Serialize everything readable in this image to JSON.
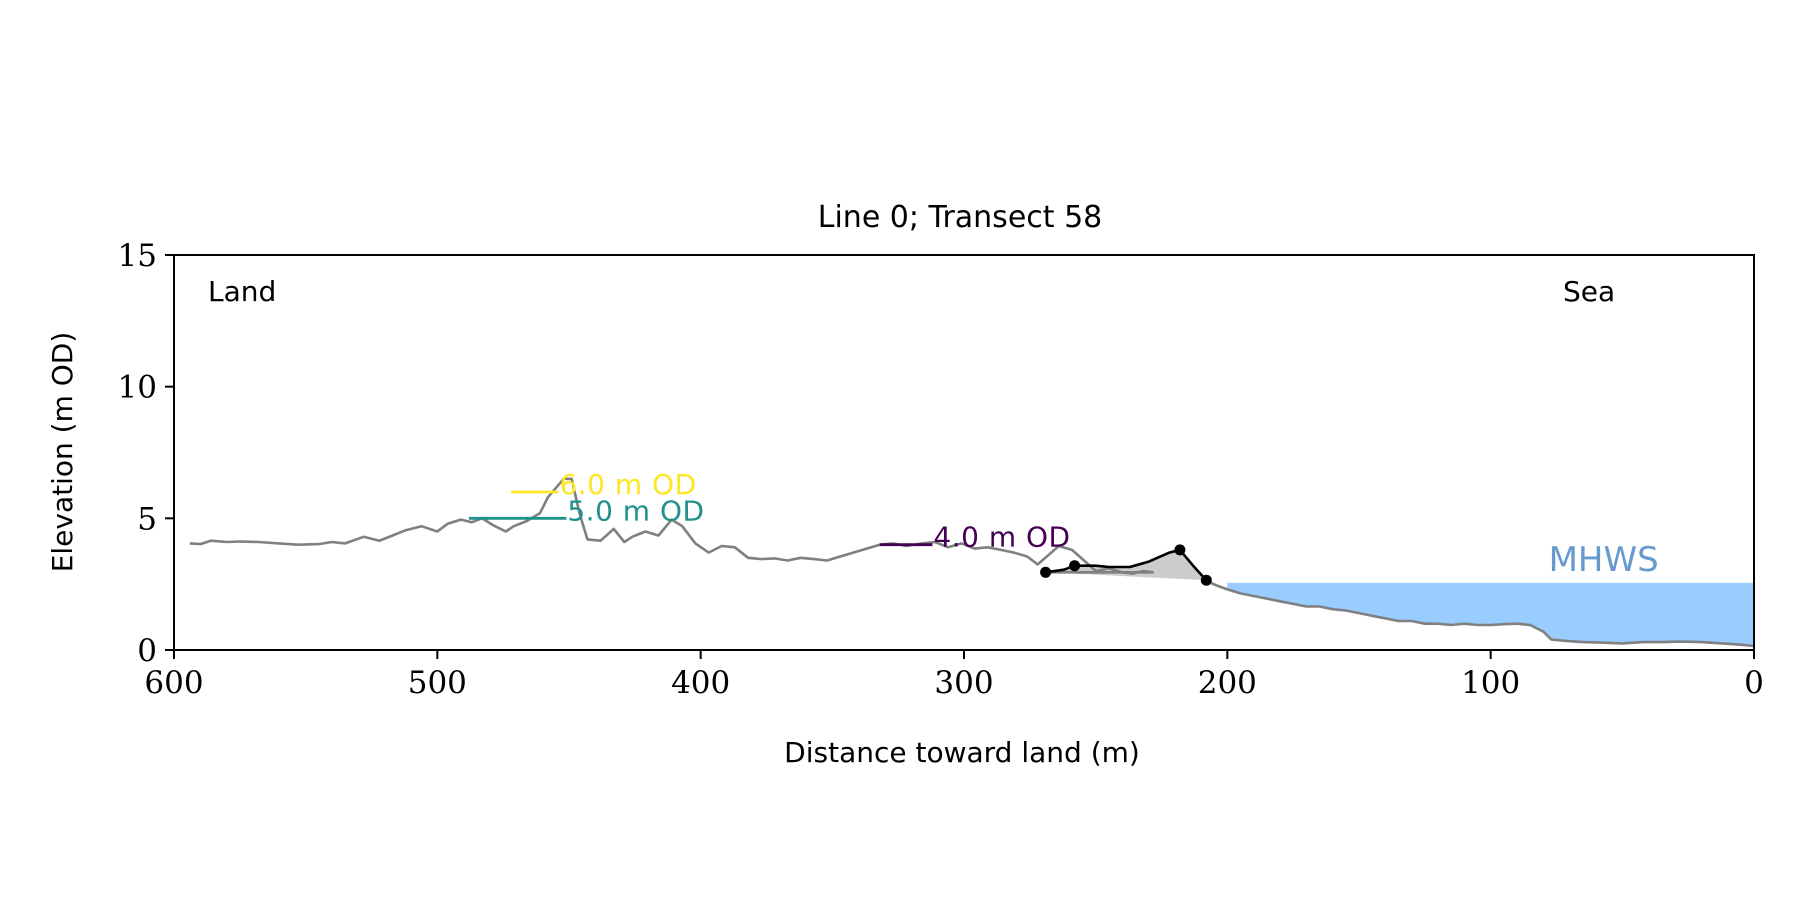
{
  "chart_data": {
    "type": "line",
    "title": "Line 0; Transect 58",
    "xlabel": "Distance toward land (m)",
    "ylabel": "Elevation (m OD)",
    "xlim": [
      600,
      0
    ],
    "ylim": [
      0,
      15
    ],
    "x_ticks": [
      600,
      500,
      400,
      300,
      200,
      100,
      0
    ],
    "y_ticks": [
      0,
      5,
      10,
      15
    ],
    "x_reversed": true,
    "grid": false,
    "annotations": {
      "land": "Land",
      "sea": "Sea",
      "mhws": "MHWS"
    },
    "mhws": {
      "elevation": 2.55,
      "from_x": 200,
      "to_x": 0,
      "color": "#99ccff",
      "label_color": "#6699cc"
    },
    "profile": {
      "color": "#808080",
      "points": [
        [
          594,
          4.05
        ],
        [
          590,
          4.02
        ],
        [
          586,
          4.15
        ],
        [
          580,
          4.1
        ],
        [
          575,
          4.12
        ],
        [
          568,
          4.1
        ],
        [
          560,
          4.05
        ],
        [
          553,
          4.0
        ],
        [
          545,
          4.02
        ],
        [
          540,
          4.1
        ],
        [
          535,
          4.05
        ],
        [
          528,
          4.3
        ],
        [
          522,
          4.15
        ],
        [
          517,
          4.35
        ],
        [
          512,
          4.55
        ],
        [
          506,
          4.7
        ],
        [
          500,
          4.5
        ],
        [
          496,
          4.8
        ],
        [
          491,
          4.95
        ],
        [
          487,
          4.85
        ],
        [
          483,
          5.0
        ],
        [
          479,
          4.75
        ],
        [
          474,
          4.5
        ],
        [
          471,
          4.7
        ],
        [
          466,
          4.9
        ],
        [
          461,
          5.2
        ],
        [
          458,
          5.8
        ],
        [
          452,
          6.5
        ],
        [
          449,
          6.5
        ],
        [
          446,
          5.2
        ],
        [
          443,
          4.2
        ],
        [
          438,
          4.15
        ],
        [
          433,
          4.6
        ],
        [
          429,
          4.1
        ],
        [
          426,
          4.3
        ],
        [
          421,
          4.5
        ],
        [
          416,
          4.35
        ],
        [
          411,
          4.95
        ],
        [
          407,
          4.7
        ],
        [
          402,
          4.05
        ],
        [
          397,
          3.7
        ],
        [
          392,
          3.95
        ],
        [
          387,
          3.9
        ],
        [
          382,
          3.5
        ],
        [
          377,
          3.45
        ],
        [
          372,
          3.48
        ],
        [
          367,
          3.4
        ],
        [
          362,
          3.5
        ],
        [
          357,
          3.45
        ],
        [
          352,
          3.4
        ],
        [
          347,
          3.55
        ],
        [
          342,
          3.7
        ],
        [
          337,
          3.85
        ],
        [
          332,
          4.0
        ],
        [
          327,
          4.05
        ],
        [
          322,
          3.95
        ],
        [
          316,
          4.05
        ],
        [
          311,
          4.1
        ],
        [
          306,
          3.9
        ],
        [
          301,
          4.05
        ],
        [
          296,
          3.85
        ],
        [
          291,
          3.9
        ],
        [
          286,
          3.8
        ],
        [
          281,
          3.7
        ],
        [
          276,
          3.55
        ],
        [
          272,
          3.25
        ],
        [
          268,
          3.6
        ],
        [
          264,
          3.95
        ],
        [
          259,
          3.8
        ],
        [
          255,
          3.45
        ],
        [
          250,
          3.0
        ],
        [
          245,
          3.1
        ],
        [
          240,
          2.95
        ],
        [
          236,
          2.9
        ],
        [
          232,
          3.0
        ],
        [
          228,
          2.95
        ]
      ]
    },
    "profile_seaward": {
      "color": "#808080",
      "points": [
        [
          208,
          2.62
        ],
        [
          204,
          2.45
        ],
        [
          200,
          2.3
        ],
        [
          195,
          2.15
        ],
        [
          190,
          2.05
        ],
        [
          185,
          1.95
        ],
        [
          180,
          1.85
        ],
        [
          175,
          1.75
        ],
        [
          170,
          1.65
        ],
        [
          165,
          1.65
        ],
        [
          160,
          1.55
        ],
        [
          155,
          1.5
        ],
        [
          150,
          1.4
        ],
        [
          145,
          1.3
        ],
        [
          140,
          1.2
        ],
        [
          135,
          1.1
        ],
        [
          130,
          1.1
        ],
        [
          125,
          1.0
        ],
        [
          120,
          1.0
        ],
        [
          115,
          0.95
        ],
        [
          110,
          1.0
        ],
        [
          105,
          0.95
        ],
        [
          100,
          0.95
        ],
        [
          95,
          0.98
        ],
        [
          90,
          1.0
        ],
        [
          85,
          0.95
        ],
        [
          80,
          0.7
        ],
        [
          77,
          0.4
        ],
        [
          72,
          0.35
        ],
        [
          65,
          0.3
        ],
        [
          58,
          0.28
        ],
        [
          50,
          0.25
        ],
        [
          42,
          0.3
        ],
        [
          35,
          0.3
        ],
        [
          28,
          0.32
        ],
        [
          20,
          0.3
        ],
        [
          12,
          0.25
        ],
        [
          5,
          0.2
        ],
        [
          0,
          0.15
        ]
      ]
    },
    "dune_ridge": {
      "color": "#000000",
      "points": [
        [
          269,
          2.95
        ],
        [
          262,
          3.05
        ],
        [
          258,
          3.2
        ],
        [
          250,
          3.2
        ],
        [
          245,
          3.15
        ],
        [
          237,
          3.15
        ],
        [
          230,
          3.35
        ],
        [
          222,
          3.7
        ],
        [
          218,
          3.8
        ],
        [
          213,
          3.2
        ],
        [
          208,
          2.65
        ]
      ],
      "markers": [
        [
          269,
          2.95
        ],
        [
          258,
          3.2
        ],
        [
          218,
          3.8
        ],
        [
          208,
          2.65
        ]
      ],
      "shading_color": "#cccccc"
    },
    "levels": [
      {
        "label": "6.0 m OD",
        "elevation": 6.0,
        "x_from": 472,
        "x_to": 454,
        "color": "#fde725",
        "fill_from_x": 472,
        "fill_to_x": 477,
        "fill_color": "#fde725"
      },
      {
        "label": "5.0 m OD",
        "elevation": 5.0,
        "x_from": 488,
        "x_to": 451,
        "color": "#21918c",
        "fill_from_x": 488,
        "fill_to_x": 472,
        "fill_color": "#21918c"
      },
      {
        "label": "4.0 m OD",
        "elevation": 4.0,
        "x_from": 332,
        "x_to": 312,
        "color": "#440154"
      }
    ]
  }
}
